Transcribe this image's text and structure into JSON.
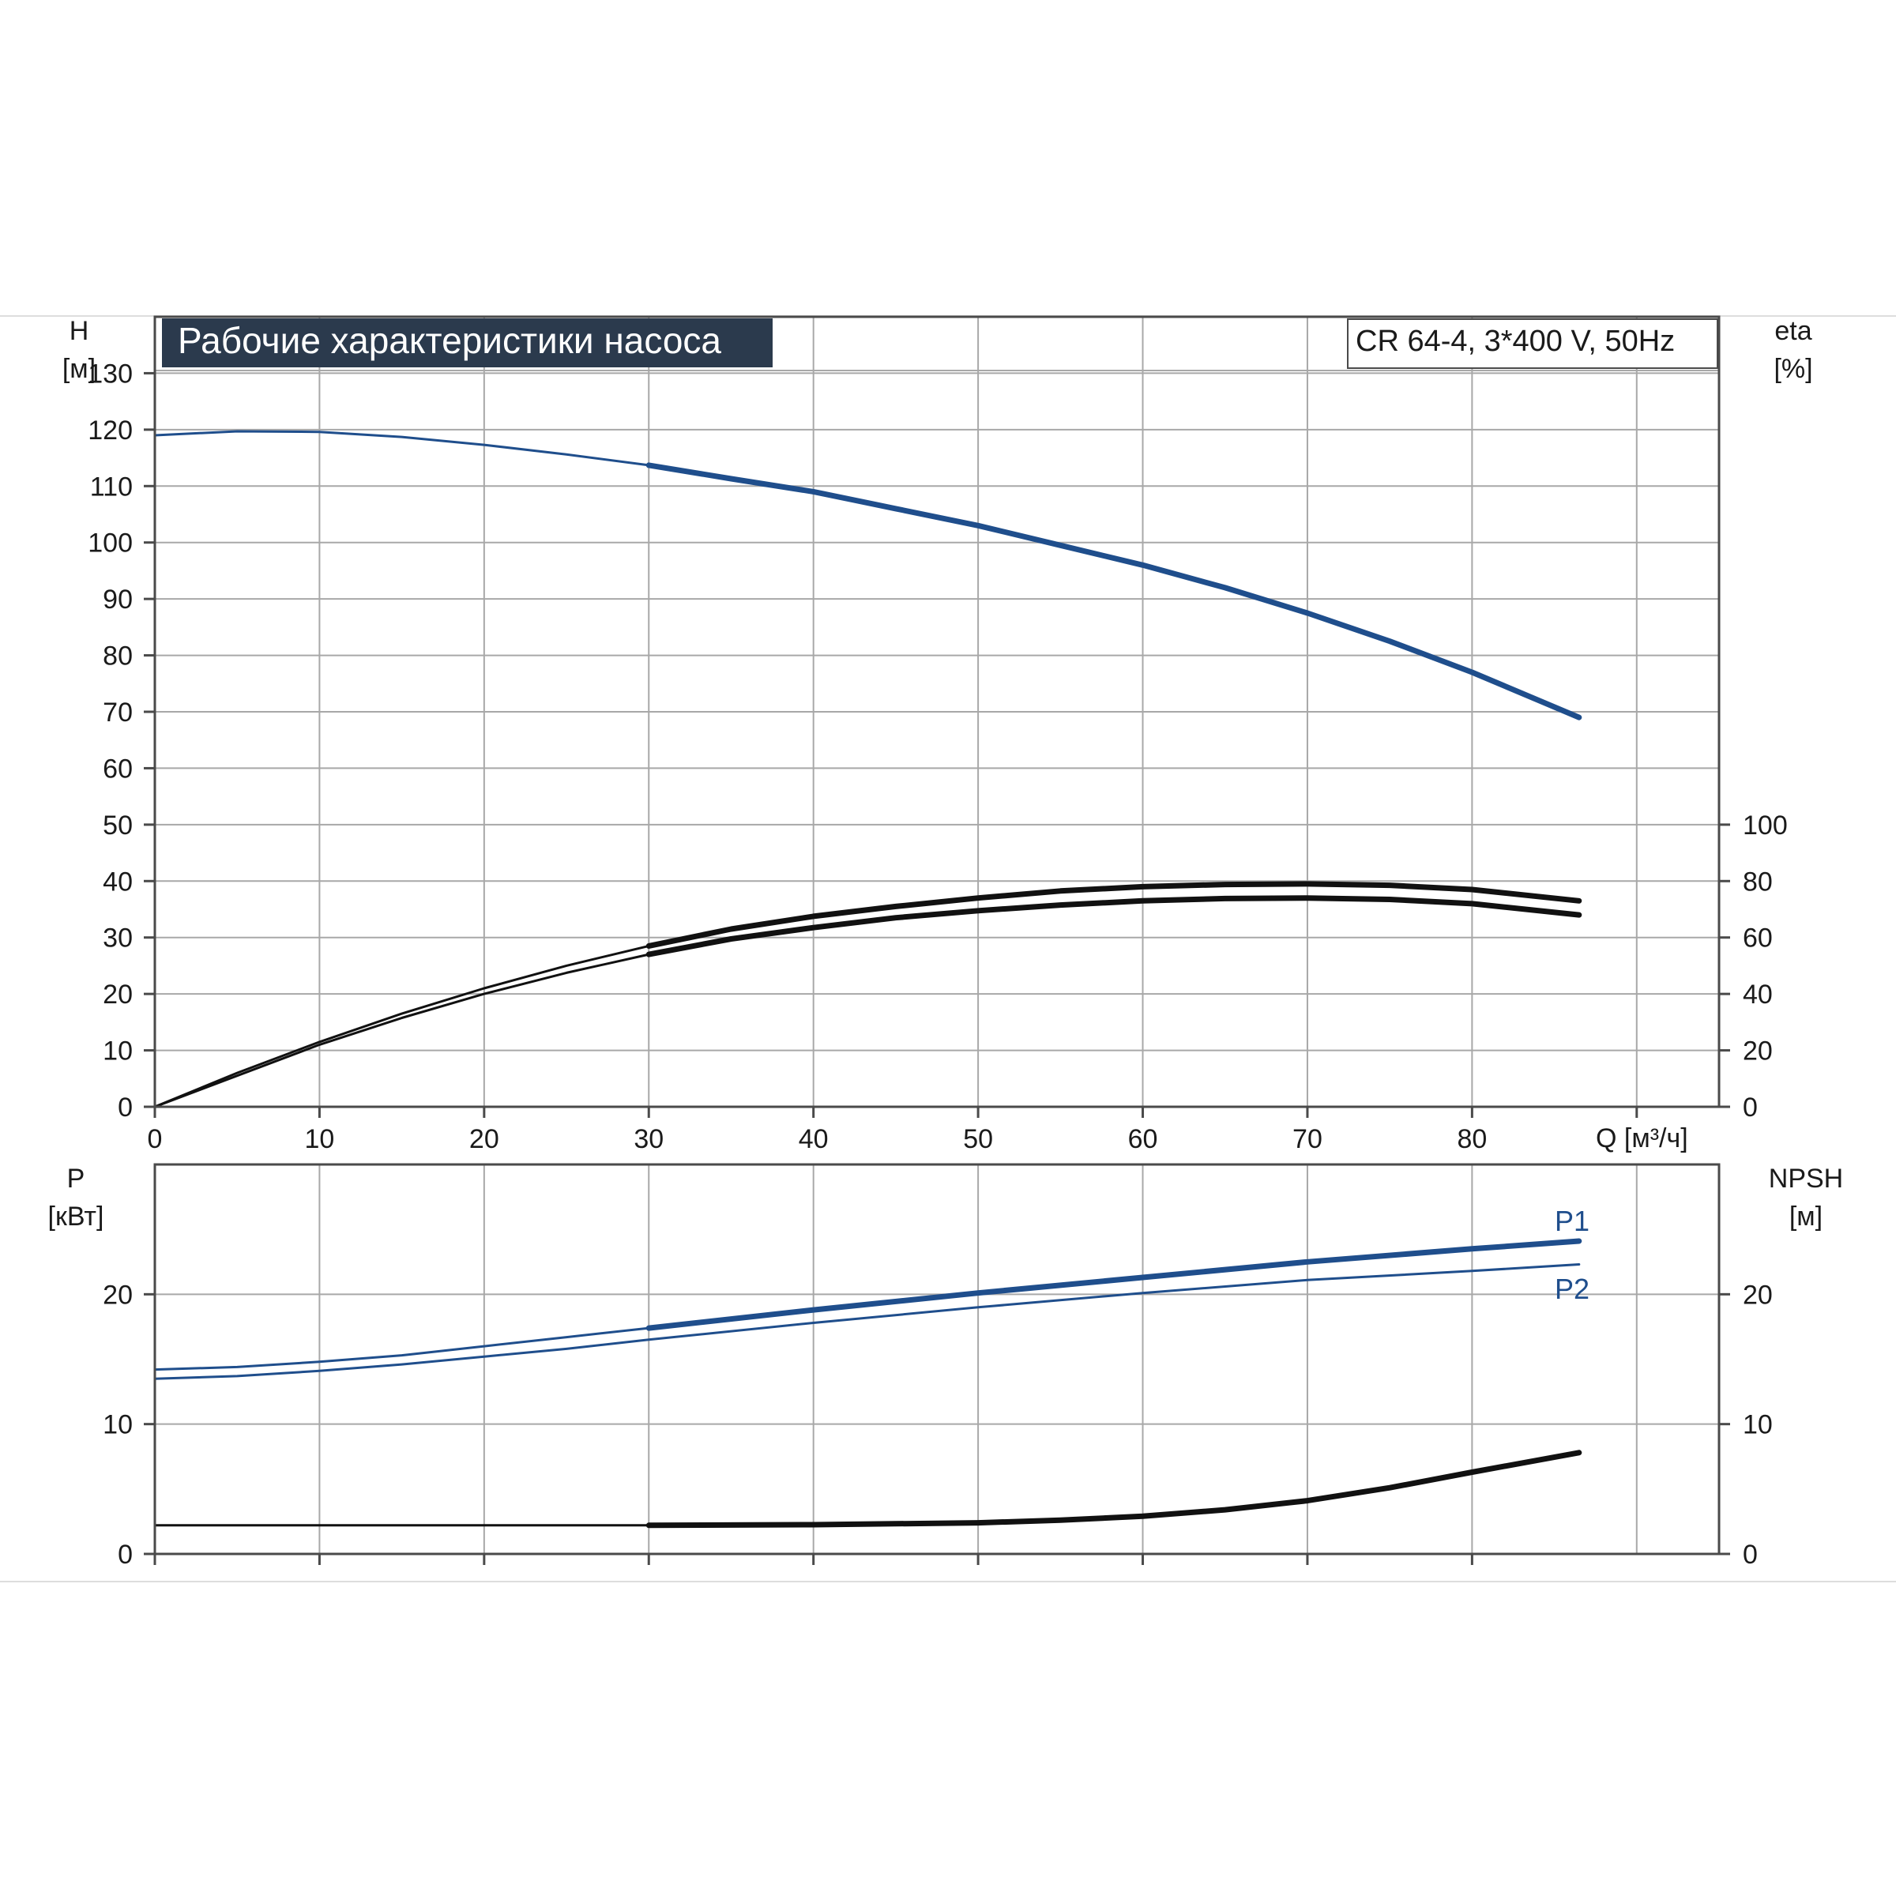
{
  "header": {
    "title": "Рабочие характеристики насоса",
    "model": "CR 64-4, 3*400 V, 50Hz"
  },
  "colors": {
    "blue": "#1f4e8c",
    "black": "#111111",
    "title_bg": "#2b3a4d",
    "grid": "#a8a8a8"
  },
  "chart_data": [
    {
      "type": "line",
      "name": "upper",
      "y_axis_left": {
        "label": "H",
        "unit": "[м]",
        "range": [
          0,
          140
        ],
        "ticks": [
          0,
          10,
          20,
          30,
          40,
          50,
          60,
          70,
          80,
          90,
          100,
          110,
          120,
          130
        ]
      },
      "y_axis_right": {
        "label": "eta",
        "unit": "[%]",
        "range": [
          0,
          280
        ],
        "ticks": [
          0,
          20,
          40,
          60,
          80,
          100
        ]
      },
      "x_axis": {
        "label": "Q [м³/ч]",
        "range": [
          0,
          95
        ],
        "ticks": [
          0,
          10,
          20,
          30,
          40,
          50,
          60,
          70,
          80
        ]
      },
      "grid": true,
      "series": [
        {
          "color": "blue",
          "axis": "left",
          "bold_from": 30,
          "x": [
            0,
            5,
            10,
            15,
            20,
            25,
            30,
            35,
            40,
            45,
            50,
            55,
            60,
            65,
            70,
            75,
            80,
            86.5
          ],
          "y": [
            119,
            119.7,
            119.6,
            118.7,
            117.3,
            115.6,
            113.7,
            111.3,
            109,
            106,
            103,
            99.5,
            96,
            92,
            87.5,
            82.5,
            77,
            69
          ]
        },
        {
          "color": "black",
          "axis": "right",
          "bold_from": 30,
          "x": [
            0,
            5,
            10,
            15,
            20,
            25,
            30,
            35,
            40,
            45,
            50,
            55,
            60,
            65,
            70,
            75,
            80,
            86.5
          ],
          "y": [
            0,
            12,
            23,
            33,
            42,
            50,
            57,
            63,
            67.5,
            71,
            74,
            76.5,
            78,
            78.8,
            79,
            78.5,
            77,
            73
          ]
        },
        {
          "color": "black",
          "axis": "right",
          "bold_from": 30,
          "x": [
            0,
            5,
            10,
            15,
            20,
            25,
            30,
            35,
            40,
            45,
            50,
            55,
            60,
            65,
            70,
            75,
            80,
            86.5
          ],
          "y": [
            0,
            11,
            22,
            31.5,
            40,
            47.5,
            54,
            59.5,
            63.5,
            67,
            69.5,
            71.5,
            73,
            73.8,
            74,
            73.5,
            72,
            68
          ]
        }
      ]
    },
    {
      "type": "line",
      "name": "lower",
      "y_axis_left": {
        "label": "P",
        "unit": "[кВт]",
        "range": [
          0,
          30
        ],
        "ticks": [
          0,
          10,
          20
        ]
      },
      "y_axis_right": {
        "label": "NPSH",
        "unit": "[м]",
        "range": [
          0,
          30
        ],
        "ticks": [
          0,
          10,
          20
        ]
      },
      "x_axis": {
        "range": [
          0,
          95
        ],
        "ticks": [
          0,
          10,
          20,
          30,
          40,
          50,
          60,
          70,
          80
        ]
      },
      "grid": true,
      "series": [
        {
          "name": "P1",
          "color": "blue",
          "axis": "left",
          "bold_from": 30,
          "x": [
            0,
            5,
            10,
            15,
            20,
            25,
            30,
            40,
            50,
            60,
            70,
            80,
            86.5
          ],
          "y": [
            14.2,
            14.4,
            14.8,
            15.3,
            16,
            16.7,
            17.4,
            18.8,
            20.1,
            21.3,
            22.5,
            23.5,
            24.1
          ]
        },
        {
          "name": "P2",
          "color": "blue",
          "axis": "left",
          "bold_from": 999,
          "x": [
            0,
            5,
            10,
            15,
            20,
            25,
            30,
            40,
            50,
            60,
            70,
            80,
            86.5
          ],
          "y": [
            13.5,
            13.7,
            14.1,
            14.6,
            15.2,
            15.8,
            16.5,
            17.8,
            19,
            20.1,
            21.1,
            21.8,
            22.3
          ]
        },
        {
          "color": "black",
          "axis": "right",
          "bold_from": 30,
          "x": [
            0,
            10,
            20,
            30,
            40,
            50,
            55,
            60,
            65,
            70,
            75,
            80,
            86.5
          ],
          "y": [
            2.2,
            2.2,
            2.2,
            2.2,
            2.25,
            2.4,
            2.6,
            2.9,
            3.4,
            4.1,
            5.1,
            6.3,
            7.8
          ]
        }
      ]
    }
  ]
}
